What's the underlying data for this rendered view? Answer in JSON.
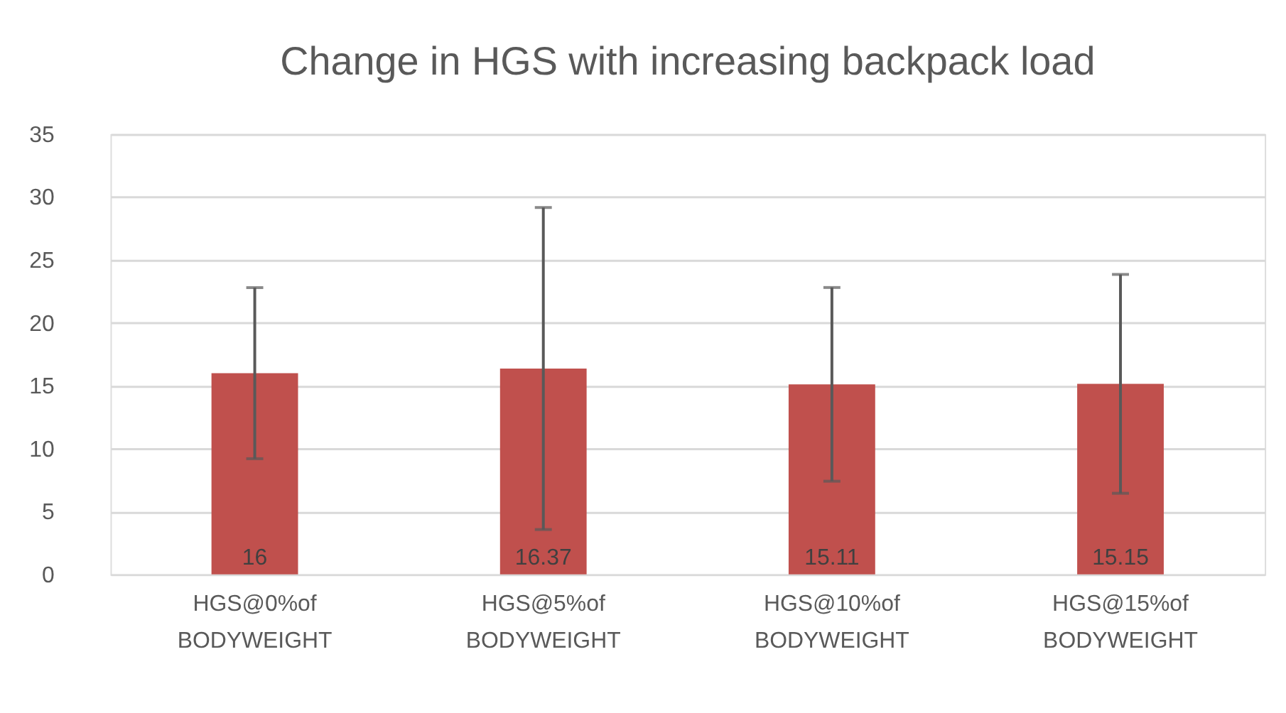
{
  "chart_data": {
    "type": "bar",
    "title": "Change in HGS with increasing backpack load",
    "categories": [
      "HGS@0%of BODYWEIGHT",
      "HGS@5%of BODYWEIGHT",
      "HGS@10%of BODYWEIGHT",
      "HGS@15%of BODYWEIGHT"
    ],
    "values": [
      16,
      16.37,
      15.11,
      15.15
    ],
    "errors": [
      6.8,
      12.8,
      7.7,
      8.7
    ],
    "color": "#c0504d",
    "ylim": [
      0,
      35
    ],
    "yticks": [
      0,
      5,
      10,
      15,
      20,
      25,
      30,
      35
    ],
    "grid": "y",
    "data_labels": true
  }
}
